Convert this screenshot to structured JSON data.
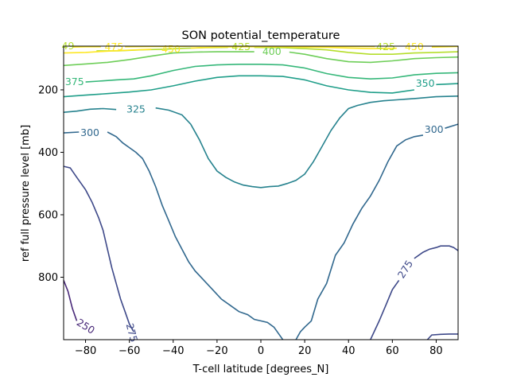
{
  "chart_data": {
    "type": "contour",
    "title": "SON potential_temperature",
    "xlabel": "T-cell latitude [degrees_N]",
    "ylabel": "ref full pressure level [mb]",
    "xlim": [
      -90,
      90
    ],
    "ylim": [
      1000,
      60
    ],
    "y_inverted": true,
    "x_ticks": [
      -80,
      -60,
      -40,
      -20,
      0,
      20,
      40,
      60,
      80
    ],
    "y_ticks": [
      200,
      400,
      600,
      800
    ],
    "levels": [
      {
        "level": 250,
        "label": "250",
        "color": "#482878",
        "segments": [
          [
            [
              -90,
              810
            ],
            [
              -88,
              845
            ],
            [
              -86,
              900
            ],
            [
              -84,
              940
            ]
          ]
        ],
        "label_at": [
          -80,
          958
        ],
        "label_angle": 32
      },
      {
        "level": 275,
        "label": "275",
        "color": "#3e4989",
        "segments": [
          [
            [
              -90,
              445
            ],
            [
              -87,
              450
            ],
            [
              -84,
              480
            ],
            [
              -80,
              520
            ],
            [
              -77,
              560
            ],
            [
              -74,
              610
            ],
            [
              -72,
              650
            ],
            [
              -70,
              710
            ],
            [
              -68,
              770
            ],
            [
              -66,
              820
            ],
            [
              -64,
              870
            ],
            [
              -62,
              910
            ],
            [
              -60,
              950
            ],
            [
              -58,
              975
            ]
          ],
          [
            [
              -56,
              1000
            ],
            [
              -56,
              1010
            ]
          ],
          [
            [
              50,
              1000
            ],
            [
              54,
              940
            ],
            [
              57,
              890
            ],
            [
              60,
              840
            ],
            [
              63,
              810
            ]
          ],
          [
            [
              70,
              740
            ],
            [
              74,
              720
            ],
            [
              77,
              710
            ],
            [
              80,
              705
            ],
            [
              82,
              700
            ],
            [
              86,
              700
            ],
            [
              88,
              705
            ],
            [
              90,
              715
            ]
          ],
          [
            [
              76,
              1000
            ],
            [
              78,
              985
            ],
            [
              82,
              983
            ],
            [
              86,
              982
            ],
            [
              90,
              982
            ]
          ]
        ],
        "label_at": [
          -59,
          978
        ],
        "label_angle": 75,
        "label_at_2": [
          66,
          775
        ],
        "label_angle_2": -58
      },
      {
        "level": 300,
        "label": "300",
        "color": "#31688e",
        "segments": [
          [
            [
              -90,
              338
            ],
            [
              -83,
              335
            ]
          ],
          [
            [
              -70,
              335
            ],
            [
              -66,
              350
            ],
            [
              -63,
              370
            ],
            [
              -60,
              385
            ],
            [
              -57,
              400
            ],
            [
              -54,
              420
            ],
            [
              -51,
              460
            ],
            [
              -48,
              510
            ],
            [
              -45,
              570
            ],
            [
              -42,
              620
            ],
            [
              -39,
              670
            ],
            [
              -36,
              710
            ],
            [
              -33,
              750
            ],
            [
              -30,
              780
            ],
            [
              -26,
              810
            ],
            [
              -22,
              840
            ],
            [
              -18,
              870
            ],
            [
              -14,
              890
            ],
            [
              -10,
              910
            ],
            [
              -6,
              920
            ],
            [
              -3,
              935
            ],
            [
              0,
              940
            ],
            [
              3,
              945
            ],
            [
              6,
              960
            ],
            [
              8,
              980
            ],
            [
              10,
              1000
            ]
          ],
          [
            [
              16,
              1000
            ],
            [
              18,
              975
            ],
            [
              20,
              960
            ],
            [
              23,
              940
            ],
            [
              26,
              870
            ],
            [
              30,
              820
            ],
            [
              34,
              730
            ],
            [
              38,
              690
            ],
            [
              42,
              630
            ],
            [
              46,
              580
            ],
            [
              50,
              540
            ],
            [
              54,
              490
            ],
            [
              58,
              430
            ],
            [
              62,
              380
            ],
            [
              66,
              360
            ],
            [
              70,
              350
            ],
            [
              74,
              345
            ]
          ],
          [
            [
              84,
              323
            ],
            [
              90,
              310
            ]
          ]
        ],
        "label_at": [
          -78,
          338
        ],
        "label_at_2": [
          79,
          328
        ]
      },
      {
        "level": 325,
        "label": "325",
        "color": "#26828e",
        "segments": [
          [
            [
              -90,
              272
            ],
            [
              -84,
              268
            ],
            [
              -78,
              262
            ],
            [
              -72,
              260
            ],
            [
              -66,
              263
            ]
          ],
          [
            [
              -48,
              258
            ],
            [
              -42,
              265
            ],
            [
              -36,
              280
            ],
            [
              -32,
              310
            ],
            [
              -28,
              360
            ],
            [
              -24,
              420
            ],
            [
              -20,
              460
            ],
            [
              -16,
              480
            ],
            [
              -12,
              495
            ],
            [
              -8,
              505
            ],
            [
              -4,
              510
            ],
            [
              0,
              513
            ],
            [
              4,
              510
            ],
            [
              8,
              508
            ],
            [
              12,
              500
            ],
            [
              16,
              490
            ],
            [
              20,
              470
            ],
            [
              24,
              430
            ],
            [
              28,
              380
            ],
            [
              32,
              330
            ],
            [
              36,
              290
            ],
            [
              40,
              260
            ],
            [
              44,
              250
            ],
            [
              50,
              240
            ],
            [
              56,
              235
            ],
            [
              62,
              232
            ],
            [
              70,
              228
            ],
            [
              80,
              222
            ],
            [
              90,
              220
            ]
          ]
        ],
        "label_at": [
          -57,
          262
        ]
      },
      {
        "level": 350,
        "label": "350",
        "color": "#1f9e89",
        "segments": [
          [
            [
              -90,
              222
            ],
            [
              -80,
              217
            ],
            [
              -70,
              212
            ],
            [
              -60,
              207
            ],
            [
              -50,
              200
            ],
            [
              -40,
              187
            ],
            [
              -30,
              172
            ],
            [
              -20,
              160
            ],
            [
              -10,
              155
            ],
            [
              0,
              155
            ],
            [
              10,
              157
            ],
            [
              20,
              168
            ],
            [
              30,
              187
            ],
            [
              40,
              200
            ],
            [
              50,
              208
            ],
            [
              60,
              210
            ],
            [
              70,
              200
            ]
          ],
          [
            [
              80,
              183
            ],
            [
              90,
              180
            ]
          ]
        ],
        "label_at": [
          75,
          180
        ]
      },
      {
        "level": 375,
        "label": "375",
        "color": "#35b779",
        "segments": [
          [
            [
              -80,
              175
            ],
            [
              -74,
              172
            ],
            [
              -66,
              168
            ],
            [
              -58,
              165
            ],
            [
              -50,
              155
            ],
            [
              -40,
              138
            ],
            [
              -30,
              125
            ],
            [
              -20,
              120
            ],
            [
              -10,
              118
            ],
            [
              0,
              118
            ],
            [
              10,
              120
            ],
            [
              20,
              130
            ],
            [
              30,
              148
            ],
            [
              40,
              160
            ],
            [
              50,
              165
            ],
            [
              60,
              162
            ],
            [
              70,
              152
            ],
            [
              80,
              147
            ],
            [
              90,
              145
            ]
          ]
        ],
        "label_at": [
          -85,
          175
        ]
      },
      {
        "level": 400,
        "label": "400",
        "color": "#6ece58",
        "segments": [
          [
            [
              -90,
              122
            ],
            [
              -80,
              117
            ],
            [
              -70,
              112
            ],
            [
              -60,
              103
            ],
            [
              -50,
              92
            ],
            [
              -40,
              82
            ],
            [
              -30,
              79
            ],
            [
              -20,
              78
            ],
            [
              -10,
              78
            ],
            [
              -3,
              78
            ]
          ],
          [
            [
              13,
              79
            ],
            [
              20,
              86
            ],
            [
              30,
              100
            ],
            [
              40,
              110
            ],
            [
              50,
              112
            ],
            [
              60,
              107
            ],
            [
              70,
              100
            ],
            [
              80,
              97
            ],
            [
              90,
              95
            ]
          ]
        ],
        "label_at": [
          5,
          78
        ]
      },
      {
        "level": 425,
        "label": "425",
        "color": "#b5de2b",
        "segments": [
          [
            [
              -75,
              75
            ],
            [
              -65,
              75
            ],
            [
              -55,
              72
            ],
            [
              -45,
              70
            ],
            [
              -35,
              67
            ],
            [
              -25,
              65
            ],
            [
              -15,
              64
            ]
          ],
          [
            [
              -3,
              64
            ],
            [
              10,
              65
            ],
            [
              20,
              68
            ],
            [
              30,
              72
            ],
            [
              40,
              80
            ],
            [
              50,
              86
            ],
            [
              60,
              86
            ],
            [
              70,
              82
            ],
            [
              80,
              80
            ],
            [
              90,
              78
            ]
          ]
        ],
        "label_at": [
          -9,
          62
        ],
        "label_at_2": [
          57,
          62
        ]
      },
      {
        "level": 450,
        "label": "450",
        "color": "#fde725",
        "segments": [
          [
            [
              -90,
              82
            ],
            [
              -80,
              80
            ],
            [
              -70,
              76
            ],
            [
              -60,
              73
            ],
            [
              -50,
              70
            ]
          ],
          [
            [
              -32,
              66
            ],
            [
              -20,
              63
            ],
            [
              -10,
              62
            ],
            [
              0,
              62
            ],
            [
              10,
              62
            ],
            [
              20,
              63
            ],
            [
              30,
              64
            ],
            [
              40,
              66
            ],
            [
              50,
              68
            ],
            [
              62,
              67
            ]
          ],
          [
            [
              78,
              63
            ],
            [
              85,
              62
            ],
            [
              90,
              61
            ]
          ]
        ],
        "label_at": [
          -41,
          70
        ],
        "label_at_2": [
          70,
          62
        ]
      },
      {
        "level": 475,
        "label": "475",
        "color": "#fde725",
        "segments": [
          [
            [
              -73,
              62
            ],
            [
              -80,
              62
            ],
            [
              -86,
              63
            ]
          ],
          [
            [
              -62,
              62
            ],
            [
              -50,
              61
            ],
            [
              -40,
              61
            ],
            [
              -30,
              60
            ],
            [
              -20,
              60
            ],
            [
              -10,
              60
            ],
            [
              0,
              60
            ],
            [
              10,
              60
            ],
            [
              20,
              60
            ],
            [
              30,
              61
            ],
            [
              40,
              61
            ],
            [
              52,
              61
            ]
          ]
        ],
        "label_at": [
          -67,
          62
        ]
      }
    ],
    "edge_labels": [
      {
        "label": "49",
        "color": "#b5de2b",
        "at": [
          -88,
          60
        ]
      }
    ]
  }
}
